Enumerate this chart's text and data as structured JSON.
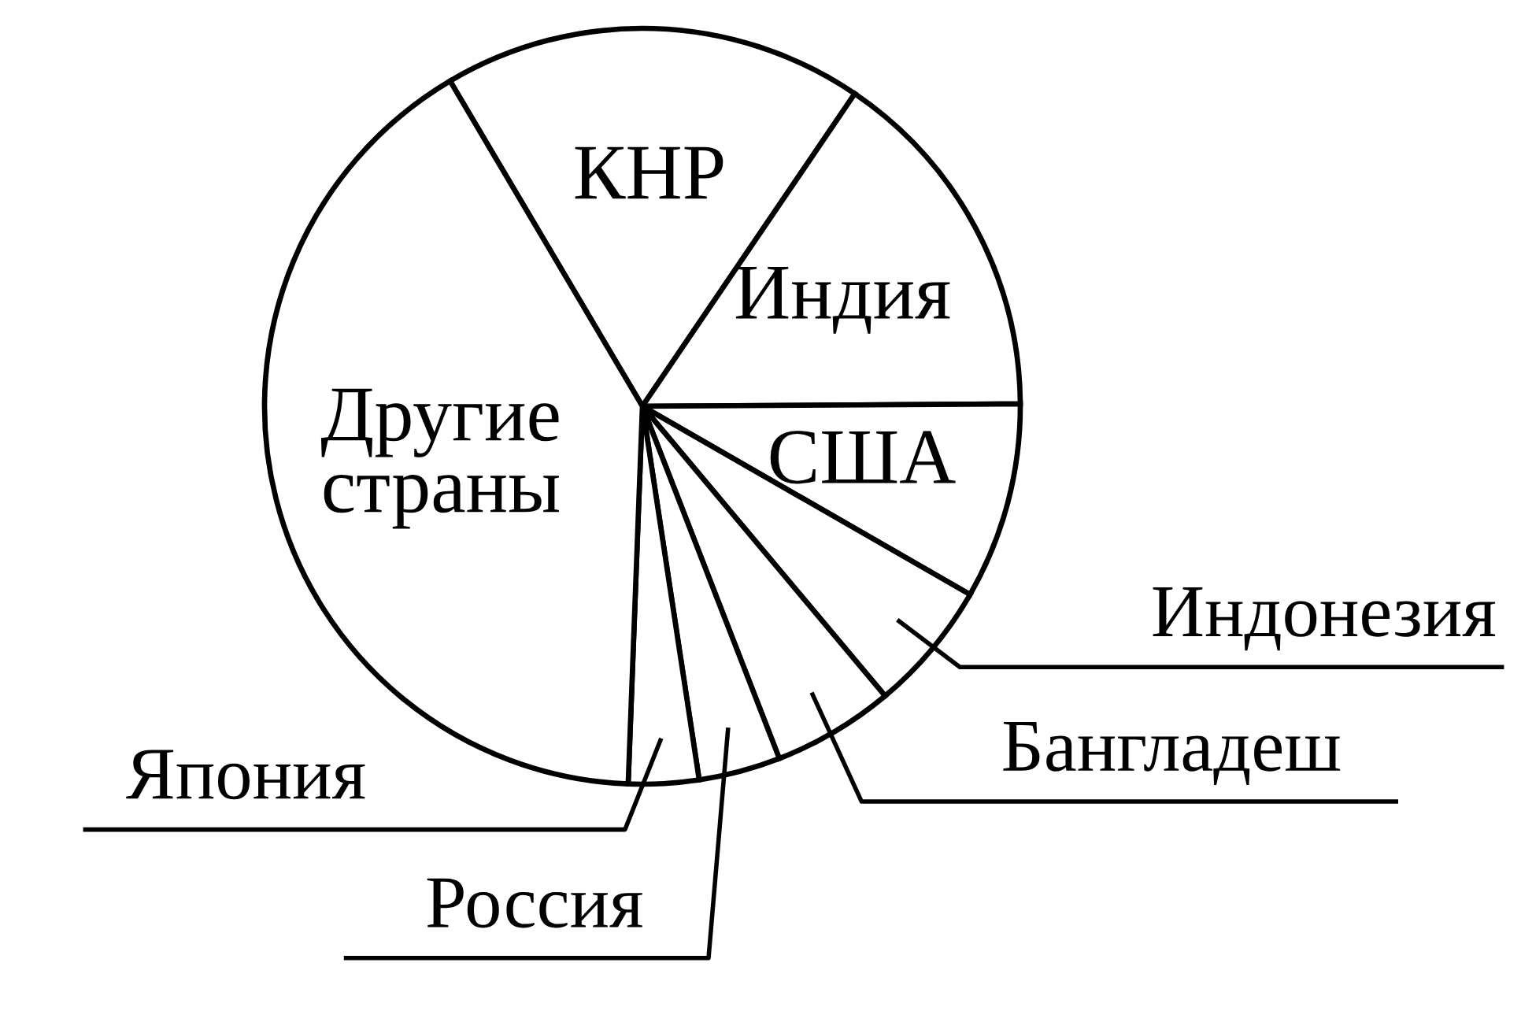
{
  "chart_data": {
    "type": "pie",
    "categories": [
      "КНР",
      "Индия",
      "США",
      "Индонезия",
      "Бангладеш",
      "Россия",
      "Япония",
      "Другие страны"
    ],
    "values": [
      18.0,
      15.4,
      8.4,
      5.6,
      5.2,
      3.5,
      3.0,
      40.9
    ],
    "colors": [
      "#ffffff",
      "#ffffff",
      "#ffffff",
      "#ffffff",
      "#ffffff",
      "#ffffff",
      "#ffffff",
      "#ffffff"
    ]
  }
}
